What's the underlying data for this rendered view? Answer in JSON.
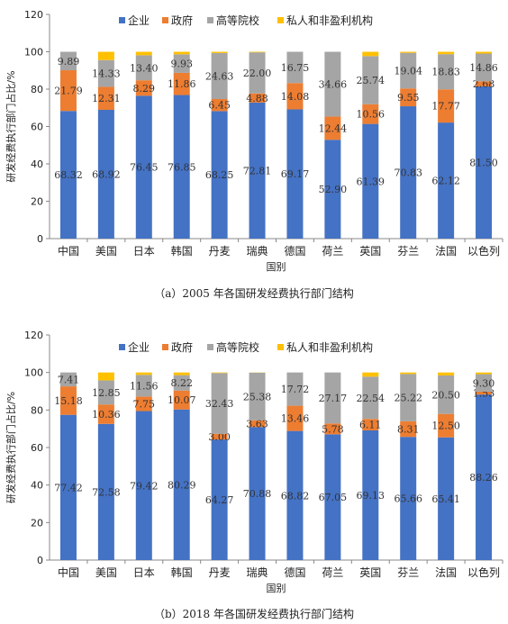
{
  "colors": {
    "企业": "#4472C4",
    "政府": "#ED7D31",
    "高等院校": "#A5A5A5",
    "私人和非盈利机构": "#FFC000"
  },
  "chart_data": [
    {
      "type": "bar",
      "stacked": true,
      "caption": "（a）2005 年各国研发经费执行部门结构",
      "xlabel": "国别",
      "ylabel": "研发经费执行部门占比/%",
      "ylim": [
        0,
        120
      ],
      "yticks": [
        0,
        20,
        40,
        60,
        80,
        100,
        120
      ],
      "legend_position": "top",
      "categories": [
        "中国",
        "美国",
        "日本",
        "韩国",
        "丹麦",
        "瑞典",
        "德国",
        "荷兰",
        "英国",
        "芬兰",
        "法国",
        "以色列"
      ],
      "series": [
        {
          "name": "企业",
          "values": [
            68.32,
            68.92,
            76.45,
            76.85,
            68.25,
            72.81,
            69.17,
            52.9,
            61.39,
            70.83,
            62.12,
            81.5
          ],
          "labels": [
            "68.32",
            "68.92",
            "76.45",
            "76.85",
            "68.25",
            "72.81",
            "69.17",
            "52.90",
            "61.39",
            "70.83",
            "62.12",
            "81.50"
          ]
        },
        {
          "name": "政府",
          "values": [
            21.79,
            12.31,
            8.29,
            11.86,
            6.45,
            4.88,
            14.08,
            12.44,
            10.56,
            9.55,
            17.77,
            2.68
          ],
          "labels": [
            "21.79",
            "12.31",
            "8.29",
            "11.86",
            "6.45",
            "4.88",
            "14.08",
            "12.44",
            "10.56",
            "9.55",
            "17.77",
            "2.68"
          ]
        },
        {
          "name": "高等院校",
          "values": [
            9.89,
            14.33,
            13.4,
            9.93,
            24.63,
            22.0,
            16.75,
            34.66,
            25.74,
            19.04,
            18.83,
            14.86
          ],
          "labels": [
            "9.89",
            "14.33",
            "13.40",
            "9.93",
            "24.63",
            "22.00",
            "16.75",
            "34.66",
            "25.74",
            "19.04",
            "18.83",
            "14.86"
          ]
        },
        {
          "name": "私人和非盈利机构",
          "values": [
            0,
            4.44,
            1.86,
            1.36,
            0.67,
            0.31,
            0,
            0,
            2.31,
            0.58,
            1.28,
            0.96
          ],
          "labels": [
            "",
            "",
            "",
            "",
            "",
            "",
            "",
            "",
            "",
            "",
            "",
            ""
          ]
        }
      ]
    },
    {
      "type": "bar",
      "stacked": true,
      "caption": "（b）2018 年各国研发经费执行部门结构",
      "xlabel": "国别",
      "ylabel": "研发经费执行部门占比/%",
      "ylim": [
        0,
        120
      ],
      "yticks": [
        0,
        20,
        40,
        60,
        80,
        100,
        120
      ],
      "legend_position": "top",
      "categories": [
        "中国",
        "美国",
        "日本",
        "韩国",
        "丹麦",
        "瑞典",
        "德国",
        "荷兰",
        "英国",
        "芬兰",
        "法国",
        "以色列"
      ],
      "series": [
        {
          "name": "企业",
          "values": [
            77.42,
            72.58,
            79.42,
            80.29,
            64.27,
            70.88,
            68.82,
            67.05,
            69.13,
            65.66,
            65.41,
            88.26
          ],
          "labels": [
            "77.42",
            "72.58",
            "79.42",
            "80.29",
            "64.27",
            "70.88",
            "68.82",
            "67.05",
            "69.13",
            "65.66",
            "65.41",
            "88.26"
          ]
        },
        {
          "name": "政府",
          "values": [
            15.18,
            10.36,
            7.75,
            10.07,
            3.0,
            3.63,
            13.46,
            5.78,
            6.11,
            8.31,
            12.5,
            1.53
          ],
          "labels": [
            "15.18",
            "10.36",
            "7.75",
            "10.07",
            "3.00",
            "3.63",
            "13.46",
            "5.78",
            "6.11",
            "8.31",
            "12.50",
            "1.53"
          ]
        },
        {
          "name": "高等院校",
          "values": [
            7.41,
            12.85,
            11.56,
            8.22,
            32.43,
            25.38,
            17.72,
            27.17,
            22.54,
            25.22,
            20.5,
            9.3
          ],
          "labels": [
            "7.41",
            "12.85",
            "11.56",
            "8.22",
            "32.43",
            "25.38",
            "17.72",
            "27.17",
            "22.54",
            "25.22",
            "20.50",
            "9.30"
          ]
        },
        {
          "name": "私人和非盈利机构",
          "values": [
            0,
            4.21,
            1.27,
            1.42,
            0.3,
            0.11,
            0,
            0,
            2.22,
            0.81,
            1.59,
            0.91
          ],
          "labels": [
            "",
            "",
            "",
            "",
            "",
            "",
            "",
            "",
            "",
            "",
            "",
            ""
          ]
        }
      ]
    }
  ]
}
